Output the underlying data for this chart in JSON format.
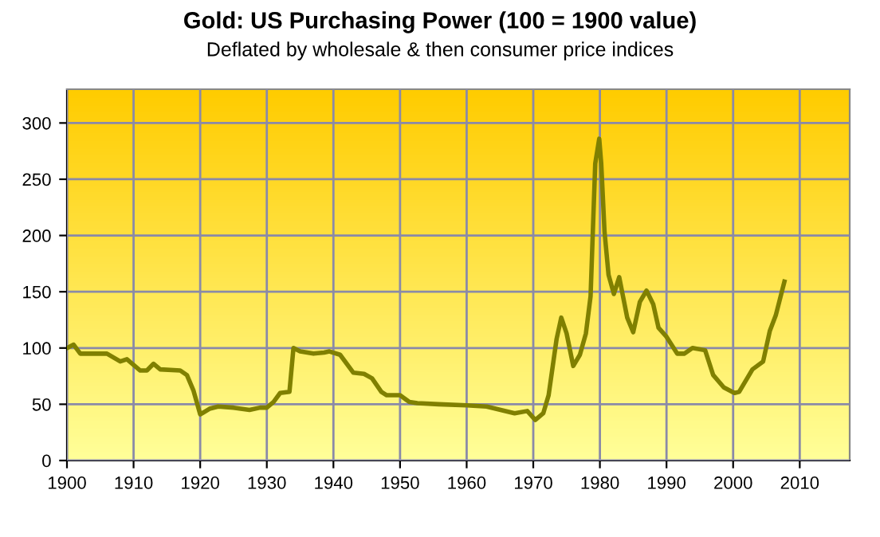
{
  "chart_data": {
    "type": "line",
    "title": "Gold: US Purchasing Power (100 = 1900 value)",
    "subtitle": "Deflated by wholesale & then consumer price indices",
    "xlim": [
      1900,
      2017.5
    ],
    "xticks": [
      1900,
      1910,
      1920,
      1930,
      1940,
      1950,
      1960,
      1970,
      1980,
      1990,
      2000,
      2010
    ],
    "ylim": [
      0,
      330
    ],
    "yticks": [
      0,
      50,
      100,
      150,
      200,
      250,
      300
    ],
    "grid": true,
    "legend": false,
    "marker": "none",
    "line_style": "solid",
    "series": [
      {
        "color": "#808000",
        "x": [
          1900,
          1901,
          1902,
          1906,
          1908,
          1909,
          1911,
          1912,
          1913,
          1914,
          1917,
          1918,
          1919,
          1920,
          1921.4,
          1922.7,
          1925,
          1927.4,
          1929,
          1930,
          1931,
          1932,
          1933.4,
          1934,
          1935,
          1937,
          1938.6,
          1939.4,
          1941,
          1943,
          1944.6,
          1945.8,
          1947.2,
          1948,
          1950,
          1951.4,
          1952.6,
          1955.8,
          1960,
          1963,
          1967.2,
          1969.1,
          1970.3,
          1971.5,
          1972.3,
          1973.5,
          1974.2,
          1975,
          1976,
          1977,
          1977.9,
          1978.6,
          1979.3,
          1979.9,
          1980.2,
          1980.7,
          1981.3,
          1982.1,
          1982.9,
          1983.4,
          1984.1,
          1985,
          1986,
          1987,
          1988,
          1988.8,
          1990,
          1991.6,
          1992.7,
          1993.9,
          1995.8,
          1997,
          1998.6,
          2000.2,
          2000.9,
          2002.9,
          2004.5,
          2005.5,
          2006.4,
          2007.7
        ],
        "values": [
          100,
          103,
          95,
          95,
          88,
          90,
          80,
          80,
          86,
          81,
          80,
          76,
          62,
          41,
          46,
          48,
          47,
          45,
          47,
          47,
          52,
          60,
          61,
          100,
          97,
          95,
          96,
          97,
          94,
          78,
          77,
          73,
          61,
          58,
          58,
          52,
          51,
          50,
          49,
          48,
          42,
          44,
          36,
          42,
          58,
          108,
          127,
          113,
          84,
          94,
          113,
          146,
          264,
          286,
          264,
          203,
          165,
          148,
          163,
          148,
          127,
          114,
          141,
          151,
          139,
          118,
          110,
          95,
          95,
          100,
          98,
          76,
          65,
          60,
          61,
          81,
          88,
          115,
          129,
          159
        ]
      }
    ]
  }
}
